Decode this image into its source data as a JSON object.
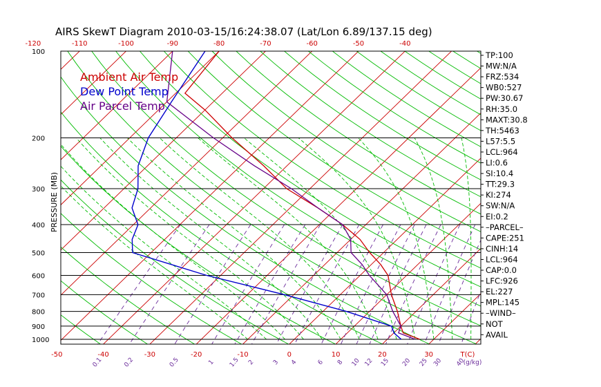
{
  "colors": {
    "ambient": "#cc0000",
    "dewpoint": "#0000cc",
    "parcel": "#660088",
    "isotherm": "#cc0000",
    "dry_adiabat": "#00bb00",
    "moist_adiabat": "#00bb00",
    "mixing_ratio": "#6a2a9a",
    "isobar": "#000000"
  },
  "chart_data": {
    "type": "skewt",
    "title": "AIRS SkewT Diagram 2010-03-15/16:24:38.07 (Lat/Lon 6.89/137.15 deg)",
    "ylabel": "PRESSURE (MB)",
    "pressure_levels": [
      100,
      200,
      300,
      400,
      500,
      600,
      700,
      800,
      900,
      1000
    ],
    "top_temp_ticks": [
      -120,
      -110,
      -100,
      -90,
      -80,
      -70,
      -60,
      -50,
      -40
    ],
    "bottom_temp_ticks": [
      -50,
      -40,
      -30,
      -20,
      -10,
      0,
      10,
      20,
      30
    ],
    "bottom_temp_unit": "T(C)",
    "mixing_ratio_labels": [
      "0.1",
      "0.2",
      "0.5",
      "1",
      "1.5",
      "2",
      "3",
      "4",
      "6",
      "8",
      "10",
      "12",
      "15",
      "20",
      "25",
      "30",
      "40"
    ],
    "mixing_ratio_unit": "g/kg",
    "legend": [
      "Ambient Air Temp",
      "Dew Point Temp",
      "Air Parcel Temp"
    ],
    "series": [
      {
        "name": "Ambient Air Temp",
        "points": [
          [
            100,
            -80
          ],
          [
            140,
            -78
          ],
          [
            160,
            -70
          ],
          [
            200,
            -58
          ],
          [
            250,
            -45
          ],
          [
            300,
            -35
          ],
          [
            350,
            -24
          ],
          [
            400,
            -15
          ],
          [
            450,
            -8
          ],
          [
            500,
            -3
          ],
          [
            550,
            2
          ],
          [
            600,
            6
          ],
          [
            700,
            11
          ],
          [
            800,
            16
          ],
          [
            900,
            20
          ],
          [
            950,
            22
          ],
          [
            1000,
            27
          ]
        ]
      },
      {
        "name": "Dew Point Temp",
        "points": [
          [
            100,
            -83
          ],
          [
            150,
            -79
          ],
          [
            200,
            -76
          ],
          [
            250,
            -72
          ],
          [
            300,
            -67
          ],
          [
            350,
            -64
          ],
          [
            400,
            -59
          ],
          [
            450,
            -57
          ],
          [
            500,
            -54
          ],
          [
            600,
            -33
          ],
          [
            700,
            -12
          ],
          [
            800,
            5
          ],
          [
            900,
            18
          ],
          [
            950,
            20
          ],
          [
            1000,
            23
          ]
        ]
      },
      {
        "name": "Air Parcel Temp",
        "points": [
          [
            100,
            -90
          ],
          [
            150,
            -80
          ],
          [
            200,
            -62
          ],
          [
            250,
            -47
          ],
          [
            300,
            -34
          ],
          [
            350,
            -24
          ],
          [
            400,
            -15
          ],
          [
            450,
            -10
          ],
          [
            500,
            -7
          ],
          [
            550,
            -2
          ],
          [
            600,
            2
          ],
          [
            700,
            10
          ],
          [
            800,
            15
          ],
          [
            900,
            20
          ],
          [
            950,
            21
          ],
          [
            1000,
            26
          ]
        ]
      }
    ]
  },
  "stats": [
    "TP:100",
    "MW:N/A",
    "FRZ:534",
    "WB0:527",
    "PW:30.67",
    "RH:35.0",
    "MAXT:30.8",
    "TH:5463",
    "L57:5.5",
    "LCL:964",
    "LI:0.6",
    "SI:10.4",
    "TT:29.3",
    "KI:274",
    "SW:N/A",
    "EI:0.2",
    "–PARCEL–",
    "CAPE:251",
    "CINH:14",
    "LCL:964",
    "CAP:0.0",
    "LFC:926",
    "EL:227",
    "MPL:145",
    "–WIND–",
    "NOT",
    "AVAIL"
  ]
}
